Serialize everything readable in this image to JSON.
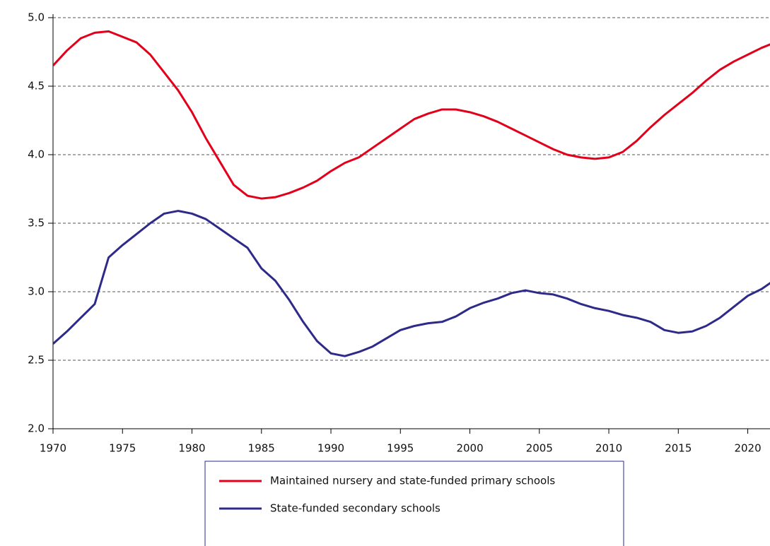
{
  "chart_data": {
    "type": "line",
    "x": [
      1970,
      1971,
      1972,
      1973,
      1974,
      1975,
      1976,
      1977,
      1978,
      1979,
      1980,
      1981,
      1982,
      1983,
      1984,
      1985,
      1986,
      1987,
      1988,
      1989,
      1990,
      1991,
      1992,
      1993,
      1994,
      1995,
      1996,
      1997,
      1998,
      1999,
      2000,
      2001,
      2002,
      2003,
      2004,
      2005,
      2006,
      2007,
      2008,
      2009,
      2010,
      2011,
      2012,
      2013,
      2014,
      2015,
      2016,
      2017,
      2018,
      2019,
      2020,
      2021,
      2022
    ],
    "series": [
      {
        "name": "Maintained nursery and state-funded primary schools",
        "color": "#e2001a",
        "values": [
          4.65,
          4.76,
          4.85,
          4.89,
          4.9,
          4.86,
          4.82,
          4.73,
          4.6,
          4.47,
          4.31,
          4.12,
          3.95,
          3.78,
          3.7,
          3.68,
          3.69,
          3.72,
          3.76,
          3.81,
          3.88,
          3.94,
          3.98,
          4.05,
          4.12,
          4.19,
          4.26,
          4.3,
          4.33,
          4.33,
          4.31,
          4.28,
          4.24,
          4.19,
          4.14,
          4.09,
          4.04,
          4.0,
          3.98,
          3.97,
          3.98,
          4.02,
          4.1,
          4.2,
          4.29,
          4.37,
          4.45,
          4.54,
          4.62,
          4.68,
          4.73,
          4.78,
          4.82
        ]
      },
      {
        "name": "State-funded secondary schools",
        "color": "#2e2a8a",
        "values": [
          2.62,
          2.71,
          2.81,
          2.91,
          3.25,
          3.34,
          3.42,
          3.5,
          3.57,
          3.59,
          3.57,
          3.53,
          3.46,
          3.39,
          3.32,
          3.17,
          3.08,
          2.94,
          2.78,
          2.64,
          2.55,
          2.53,
          2.56,
          2.6,
          2.66,
          2.72,
          2.75,
          2.77,
          2.78,
          2.82,
          2.88,
          2.92,
          2.95,
          2.99,
          3.01,
          2.99,
          2.98,
          2.95,
          2.91,
          2.88,
          2.86,
          2.83,
          2.81,
          2.78,
          2.72,
          2.7,
          2.71,
          2.75,
          2.81,
          2.89,
          2.97,
          3.02,
          3.09
        ]
      }
    ],
    "xlim": [
      1970,
      2021.6
    ],
    "xticks": [
      1970,
      1975,
      1980,
      1985,
      1990,
      1995,
      2000,
      2005,
      2010,
      2015,
      2020
    ],
    "ylim": [
      2.0,
      5.0
    ],
    "yticks": [
      {
        "value": 2.0,
        "label": "2.0"
      },
      {
        "value": 2.5,
        "label": "2.5"
      },
      {
        "value": 3.0,
        "label": "3.0"
      },
      {
        "value": 3.5,
        "label": "3.5"
      },
      {
        "value": 4.0,
        "label": "4.0"
      },
      {
        "value": 4.5,
        "label": "4.5"
      },
      {
        "value": 5.0,
        "label": "5.0"
      }
    ],
    "grid": true
  }
}
